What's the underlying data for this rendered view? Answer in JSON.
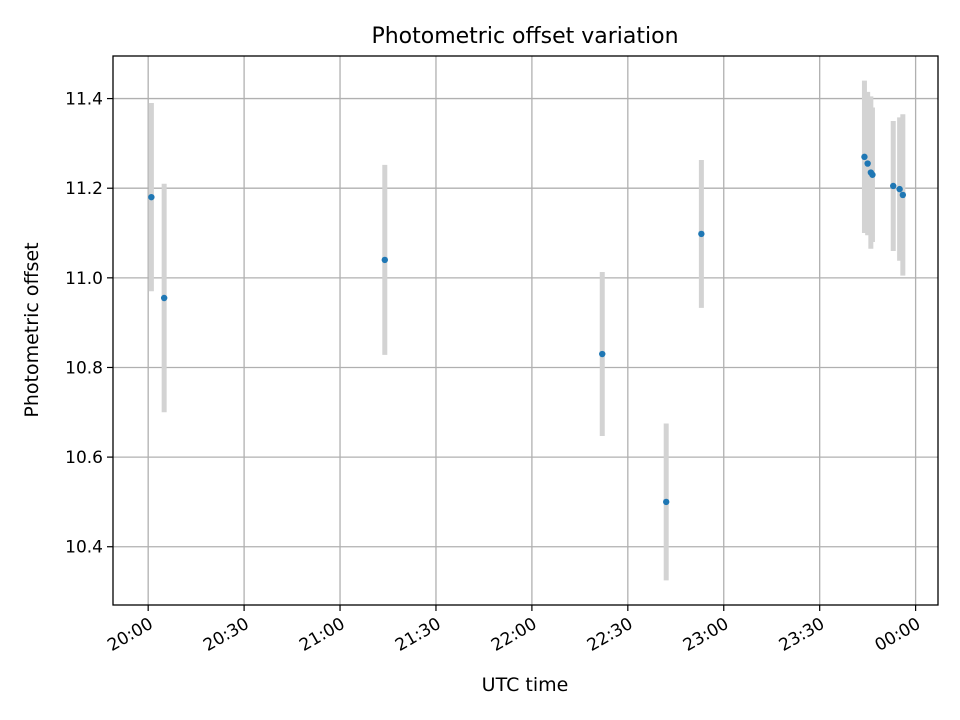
{
  "chart_data": {
    "type": "scatter",
    "title": "Photometric offset variation",
    "xlabel": "UTC time",
    "ylabel": "Photometric offset",
    "xlim": [
      "19:49",
      "00:07"
    ],
    "ylim": [
      10.27,
      11.495
    ],
    "x_ticks": [
      "20:00",
      "20:30",
      "21:00",
      "21:30",
      "22:00",
      "22:30",
      "23:00",
      "23:30",
      "00:00"
    ],
    "y_ticks": [
      10.4,
      10.6,
      10.8,
      11.0,
      11.2,
      11.4
    ],
    "grid": true,
    "colors": {
      "point": "#1f77b4",
      "errorbar": "#d3d3d3"
    },
    "series": [
      {
        "points": [
          {
            "x": "20:01",
            "y": 11.18,
            "yerr": 0.21
          },
          {
            "x": "20:05",
            "y": 10.955,
            "yerr": 0.255
          },
          {
            "x": "21:14",
            "y": 11.04,
            "yerr": 0.212
          },
          {
            "x": "22:22",
            "y": 10.83,
            "yerr": 0.183
          },
          {
            "x": "22:42",
            "y": 10.5,
            "yerr": 0.175
          },
          {
            "x": "22:53",
            "y": 11.098,
            "yerr": 0.165
          },
          {
            "x": "23:44",
            "y": 11.27,
            "yerr": 0.17
          },
          {
            "x": "23:45",
            "y": 11.255,
            "yerr": 0.16
          },
          {
            "x": "23:46",
            "y": 11.235,
            "yerr": 0.17
          },
          {
            "x": "23:46.5",
            "y": 11.23,
            "yerr": 0.15
          },
          {
            "x": "23:53",
            "y": 11.205,
            "yerr": 0.145
          },
          {
            "x": "23:55",
            "y": 11.198,
            "yerr": 0.16
          },
          {
            "x": "23:56",
            "y": 11.185,
            "yerr": 0.18
          }
        ]
      }
    ]
  }
}
